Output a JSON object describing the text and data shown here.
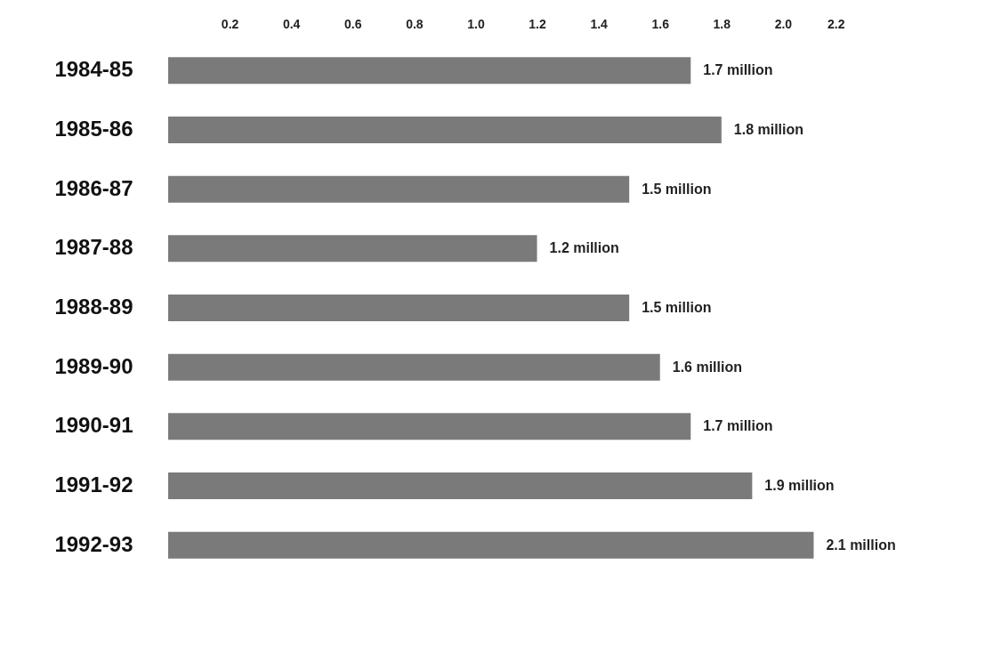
{
  "chart_data": {
    "type": "bar",
    "orientation": "horizontal",
    "categories": [
      "1984-85",
      "1985-86",
      "1986-87",
      "1987-88",
      "1988-89",
      "1989-90",
      "1990-91",
      "1991-92",
      "1992-93"
    ],
    "values": [
      1.7,
      1.8,
      1.5,
      1.2,
      1.5,
      1.6,
      1.7,
      1.9,
      2.1
    ],
    "value_labels": [
      "1.7 million",
      "1.8 million",
      "1.5 million",
      "1.2 million",
      "1.5 million",
      "1.6 million",
      "1.7 million",
      "1.9 million",
      "2.1 million"
    ],
    "color": "#7a7a7a",
    "xlim": [
      0,
      2.2
    ],
    "xticks": [
      0.2,
      0.4,
      0.6,
      0.8,
      {
        "value": 1,
        "label": "1.0"
      },
      1.2,
      1.4,
      1.6,
      1.8,
      {
        "value": 2,
        "label": "2.0"
      },
      2.2
    ],
    "grid": false
  }
}
